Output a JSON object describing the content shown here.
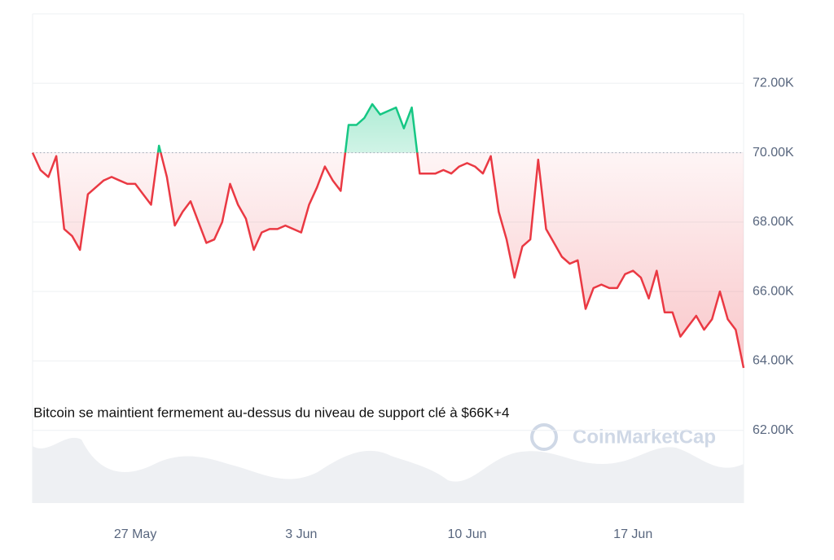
{
  "chart_data": {
    "type": "line",
    "annotation": "Bitcoin se maintient fermement au-dessus du niveau de support clé à $66K+4",
    "watermark": "CoinMarketCap",
    "categories": [
      null,
      null,
      null,
      null,
      null,
      null,
      null,
      null,
      null,
      null,
      null,
      null,
      null,
      "27 May",
      null,
      null,
      null,
      null,
      null,
      null,
      null,
      null,
      null,
      null,
      null,
      null,
      null,
      null,
      null,
      null,
      null,
      null,
      null,
      null,
      "3 Jun",
      null,
      null,
      null,
      null,
      null,
      null,
      null,
      null,
      null,
      null,
      null,
      null,
      null,
      null,
      null,
      null,
      null,
      null,
      null,
      null,
      "10 Jun",
      null,
      null,
      null,
      null,
      null,
      null,
      null,
      null,
      null,
      null,
      null,
      null,
      null,
      null,
      null,
      null,
      null,
      null,
      null,
      null,
      "17 Jun",
      null,
      null,
      null,
      null,
      null,
      null,
      null,
      null,
      null,
      null,
      null,
      null,
      null,
      null
    ],
    "values": [
      70000,
      69500,
      69300,
      69900,
      67800,
      67600,
      67200,
      68800,
      69000,
      69200,
      69300,
      69200,
      69100,
      69100,
      68800,
      68500,
      70200,
      69300,
      67900,
      68300,
      68600,
      68000,
      67400,
      67500,
      68000,
      69100,
      68500,
      68100,
      67200,
      67700,
      67800,
      67800,
      67900,
      67800,
      67700,
      68500,
      69000,
      69600,
      69200,
      68900,
      70800,
      70800,
      71000,
      71400,
      71100,
      71200,
      71300,
      70700,
      71300,
      69400,
      69400,
      69400,
      69500,
      69400,
      69600,
      69700,
      69600,
      69400,
      69900,
      68300,
      67500,
      66400,
      67300,
      67500,
      69800,
      67800,
      67400,
      67000,
      66800,
      66900,
      65500,
      66100,
      66200,
      66100,
      66100,
      66500,
      66600,
      66400,
      65800,
      66600,
      65400,
      65400,
      64700,
      65000,
      65300,
      64900,
      65200,
      66000,
      65200,
      64900,
      63800
    ],
    "reference": 70000,
    "color_above": "#16c784",
    "color_below": "#ea3943",
    "ylim": [
      60000,
      74000
    ],
    "yticks": [
      {
        "value": 62000,
        "label": "62.00K"
      },
      {
        "value": 64000,
        "label": "64.00K"
      },
      {
        "value": 66000,
        "label": "66.00K"
      },
      {
        "value": 68000,
        "label": "68.00K"
      },
      {
        "value": 70000,
        "label": "70.00K"
      },
      {
        "value": 72000,
        "label": "72.00K"
      }
    ],
    "grid": true
  }
}
